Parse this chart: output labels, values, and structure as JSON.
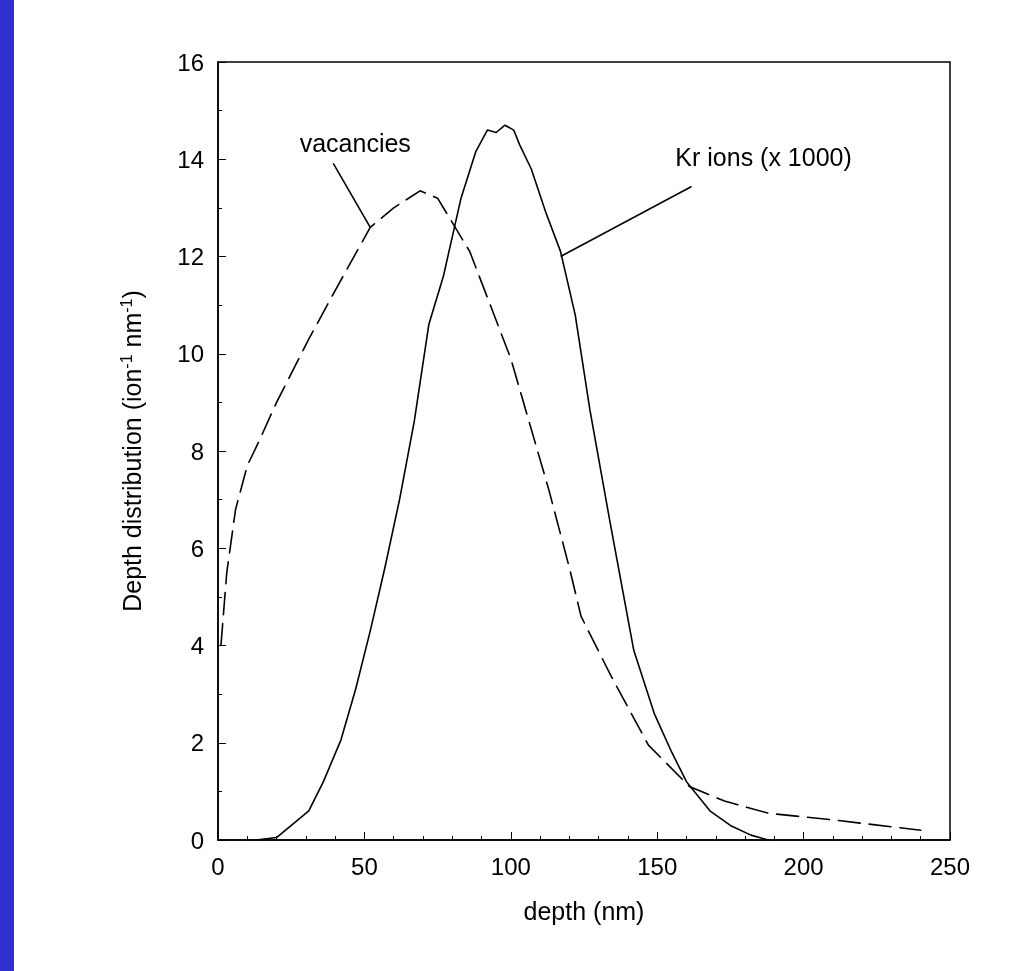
{
  "chart_data": {
    "type": "line",
    "xlabel": "depth (nm)",
    "ylabel": "Depth distribution (ion$^{-1}$ nm$^{-1}$)",
    "xlim": [
      0,
      250
    ],
    "xticks": [
      0,
      50,
      100,
      150,
      200,
      250
    ],
    "ylim": [
      0,
      16
    ],
    "yticks": [
      0,
      2,
      4,
      6,
      8,
      10,
      12,
      14,
      16
    ],
    "grid": false,
    "series": [
      {
        "color": "#000000",
        "line_style": "dashed",
        "x": [
          1,
          3,
          6,
          10,
          14,
          20,
          31,
          40,
          52,
          60,
          69,
          75,
          86,
          100,
          113,
          120,
          124,
          134,
          147,
          161,
          173,
          188,
          212,
          240
        ],
        "values": [
          4.0,
          5.5,
          6.8,
          7.7,
          8.2,
          9.0,
          10.3,
          11.3,
          12.6,
          13.0,
          13.35,
          13.2,
          12.1,
          9.9,
          7.2,
          5.6,
          4.6,
          3.4,
          1.95,
          1.1,
          0.8,
          0.55,
          0.4,
          0.2
        ]
      },
      {
        "color": "#000000",
        "line_style": "solid",
        "x": [
          13,
          20,
          31,
          36,
          42,
          47,
          52,
          57,
          62,
          67,
          72,
          77,
          83,
          88,
          92,
          95,
          98,
          101,
          103,
          107,
          112,
          117,
          122,
          127,
          134,
          142,
          149,
          155,
          160,
          168,
          175,
          182,
          188
        ],
        "values": [
          0,
          0.05,
          0.6,
          1.2,
          2.06,
          3.1,
          4.3,
          5.6,
          7.0,
          8.6,
          10.6,
          11.6,
          13.2,
          14.15,
          14.6,
          14.55,
          14.7,
          14.6,
          14.3,
          13.8,
          12.9,
          12.1,
          10.8,
          8.85,
          6.5,
          3.9,
          2.6,
          1.8,
          1.2,
          0.6,
          0.3,
          0.1,
          0
        ]
      }
    ],
    "annotations": [
      {
        "text": "vacancies",
        "x": 52,
        "y": 12.6
      },
      {
        "text": "Kr ions (x 1000)",
        "x": 117,
        "y": 12
      }
    ]
  }
}
